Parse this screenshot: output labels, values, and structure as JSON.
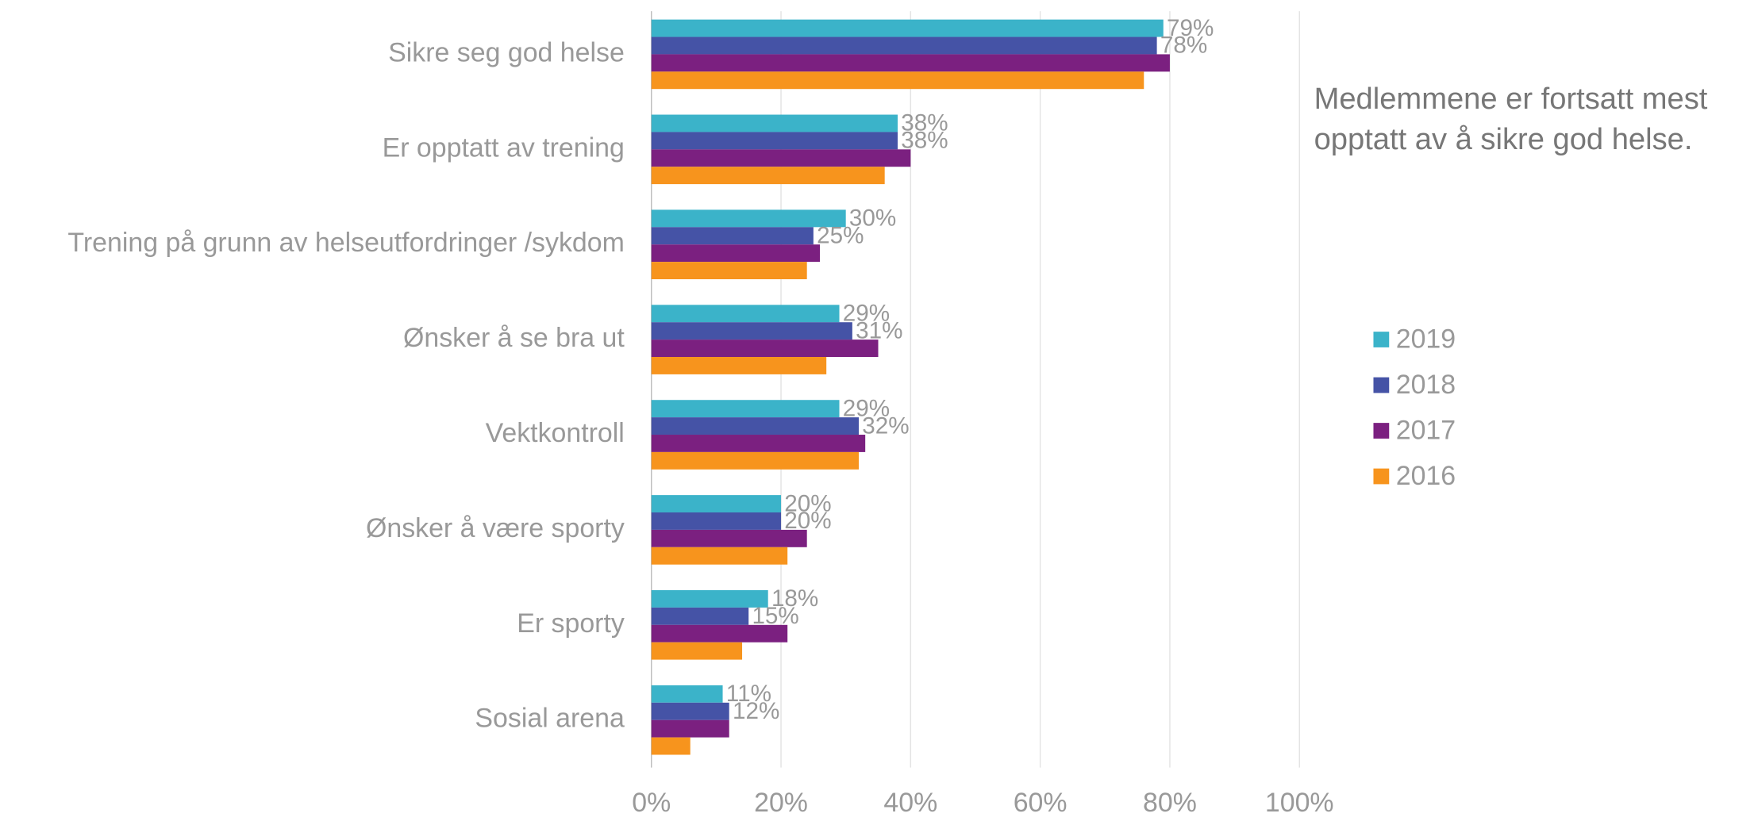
{
  "chart_data": {
    "type": "barh",
    "categories": [
      "Sikre seg god helse",
      "Er opptatt av trening",
      "Trening på grunn av helseutfordringer /sykdom",
      "Ønsker å se bra ut",
      "Vektkontroll",
      "Ønsker å være sporty",
      "Er sporty",
      "Sosial arena"
    ],
    "series": [
      {
        "name": "2019",
        "color": "#3bb3c9",
        "values": [
          79,
          38,
          30,
          29,
          29,
          20,
          18,
          11
        ],
        "value_labels": [
          "79%",
          "38%",
          "30%",
          "29%",
          "29%",
          "20%",
          "18%",
          "11%"
        ]
      },
      {
        "name": "2018",
        "color": "#4553a6",
        "values": [
          78,
          38,
          25,
          31,
          32,
          20,
          15,
          12
        ],
        "value_labels": [
          "78%",
          "38%",
          "25%",
          "31%",
          "32%",
          "20%",
          "15%",
          "12%"
        ]
      },
      {
        "name": "2017",
        "color": "#7b2080",
        "values": [
          80,
          40,
          26,
          35,
          33,
          24,
          21,
          12
        ]
      },
      {
        "name": "2016",
        "color": "#f7941d",
        "values": [
          76,
          36,
          24,
          27,
          32,
          21,
          14,
          6
        ]
      }
    ],
    "xlim": [
      0,
      100
    ],
    "xticks": [
      {
        "value": 0,
        "label": "0%"
      },
      {
        "value": 20,
        "label": "20%"
      },
      {
        "value": 40,
        "label": "40%"
      },
      {
        "value": 60,
        "label": "60%"
      },
      {
        "value": 80,
        "label": "80%"
      },
      {
        "value": 100,
        "label": "100%"
      }
    ],
    "grid": true,
    "legend": "right",
    "annotation": [
      "Medlemmene  er fortsatt mest",
      "opptatt av å sikre god helse."
    ]
  }
}
